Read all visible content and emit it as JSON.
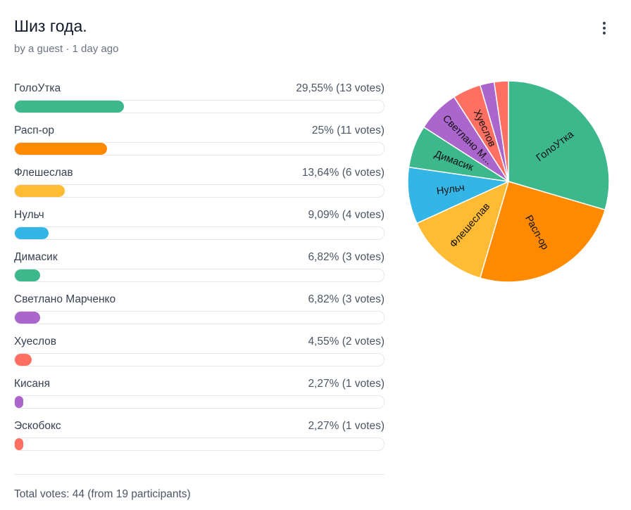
{
  "poll": {
    "title": "Шиз года.",
    "meta": "by a guest · 1 day ago",
    "menu_icon": "more-vertical-icon",
    "total_votes": "Total votes: 44 (from 19 participants)"
  },
  "options": [
    {
      "label": "ГолоУтка",
      "stats": "29,55% (13 votes)",
      "percent": 29.55,
      "votes": 13,
      "color": "#3db88c",
      "pie_label": "ГолоУтка"
    },
    {
      "label": "Расп-ор",
      "stats": "25% (11 votes)",
      "percent": 25.0,
      "votes": 11,
      "color": "#ff8a00",
      "pie_label": "Расп-ор"
    },
    {
      "label": "Флешеслав",
      "stats": "13,64% (6 votes)",
      "percent": 13.64,
      "votes": 6,
      "color": "#ffbb33",
      "pie_label": "Флешеслав"
    },
    {
      "label": "Нульч",
      "stats": "9,09% (4 votes)",
      "percent": 9.09,
      "votes": 4,
      "color": "#33b5e5",
      "pie_label": "Нульч"
    },
    {
      "label": "Димасик",
      "stats": "6,82% (3 votes)",
      "percent": 6.82,
      "votes": 3,
      "color": "#3db88c",
      "pie_label": "Димасик"
    },
    {
      "label": "Светлано Марченко",
      "stats": "6,82% (3 votes)",
      "percent": 6.82,
      "votes": 3,
      "color": "#aa66cc",
      "pie_label": "Светлано М..."
    },
    {
      "label": "Хуеслов",
      "stats": "4,55% (2 votes)",
      "percent": 4.55,
      "votes": 2,
      "color": "#ff7062",
      "pie_label": "Хуеслов"
    },
    {
      "label": "Кисаня",
      "stats": "2,27% (1 votes)",
      "percent": 2.27,
      "votes": 1,
      "color": "#aa66cc",
      "pie_label": ""
    },
    {
      "label": "Эскобокс",
      "stats": "2,27% (1 votes)",
      "percent": 2.27,
      "votes": 1,
      "color": "#ff7062",
      "pie_label": ""
    }
  ],
  "chart_data": {
    "type": "pie",
    "categories": [
      "ГолоУтка",
      "Расп-ор",
      "Флешеслав",
      "Нульч",
      "Димасик",
      "Светлано Марченко",
      "Хуеслов",
      "Кисаня",
      "Эскобокс"
    ],
    "values": [
      13,
      11,
      6,
      4,
      3,
      3,
      2,
      1,
      1
    ],
    "colors": [
      "#3db88c",
      "#ff8a00",
      "#ffbb33",
      "#33b5e5",
      "#3db88c",
      "#aa66cc",
      "#ff7062",
      "#aa66cc",
      "#ff7062"
    ],
    "start": "top",
    "direction": "clockwise"
  }
}
